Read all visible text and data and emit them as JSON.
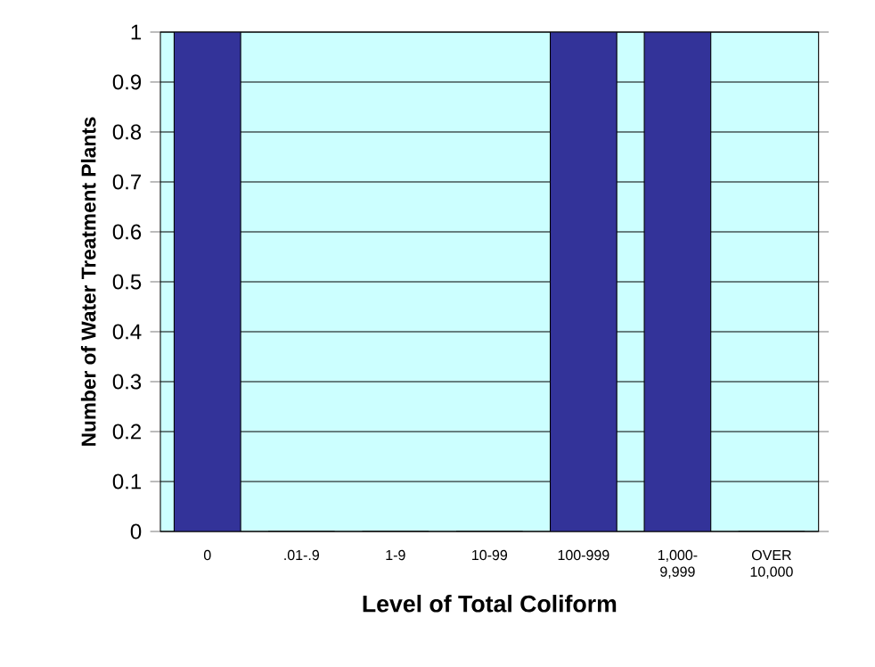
{
  "chart_data": {
    "type": "bar",
    "xlabel": "Level of Total Coliform",
    "ylabel": "Number of Water Treatment Plants",
    "categories": [
      "0",
      ".01-.9",
      "1-9",
      "10-99",
      "100-999",
      "1,000-9,999",
      "OVER 10,000"
    ],
    "values": [
      1,
      0,
      0,
      0,
      1,
      1,
      0
    ],
    "color": "#333399",
    "ylim": [
      0,
      1
    ],
    "yticks": [
      0,
      0.1,
      0.2,
      0.3,
      0.4,
      0.5,
      0.6,
      0.7,
      0.8,
      0.9,
      1
    ],
    "grid": "y"
  }
}
